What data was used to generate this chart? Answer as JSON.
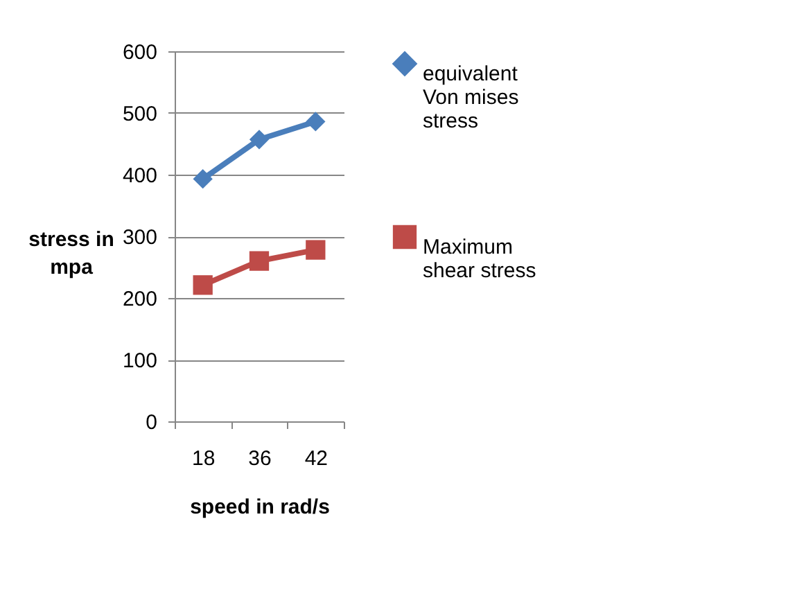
{
  "chart_data": {
    "type": "line",
    "xlabel": "speed in rad/s",
    "ylabel": "stress in mpa",
    "categories": [
      "18",
      "36",
      "42"
    ],
    "ylim": [
      0,
      600
    ],
    "yticks": [
      0,
      100,
      200,
      300,
      400,
      500,
      600
    ],
    "grid": "y",
    "legend": "right",
    "series": [
      {
        "name": "equivalent Von mises stress",
        "color": "#4a7ebb",
        "marker": "diamond",
        "values": [
          393,
          457,
          486
        ]
      },
      {
        "name": "Maximum shear stress",
        "color": "#be4b48",
        "marker": "square",
        "values": [
          221,
          260,
          278
        ]
      }
    ]
  }
}
